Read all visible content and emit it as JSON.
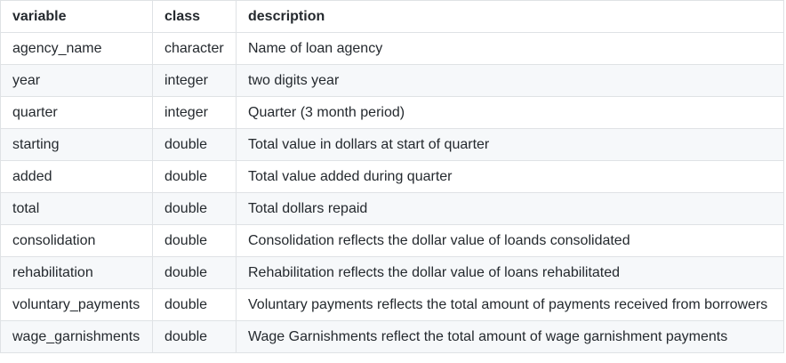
{
  "table": {
    "headers": [
      "variable",
      "class",
      "description"
    ],
    "rows": [
      [
        "agency_name",
        "character",
        "Name of loan agency"
      ],
      [
        "year",
        "integer",
        "two digits year"
      ],
      [
        "quarter",
        "integer",
        "Quarter (3 month period)"
      ],
      [
        "starting",
        "double",
        "Total value in dollars at start of quarter"
      ],
      [
        "added",
        "double",
        "Total value added during quarter"
      ],
      [
        "total",
        "double",
        "Total dollars repaid"
      ],
      [
        "consolidation",
        "double",
        "Consolidation reflects the dollar value of loands consolidated"
      ],
      [
        "rehabilitation",
        "double",
        "Rehabilitation reflects the dollar value of loans rehabilitated"
      ],
      [
        "voluntary_payments",
        "double",
        "Voluntary payments reflects the total amount of payments received from borrowers"
      ],
      [
        "wage_garnishments",
        "double",
        "Wage Garnishments reflect the total amount of wage garnishment payments"
      ]
    ]
  }
}
